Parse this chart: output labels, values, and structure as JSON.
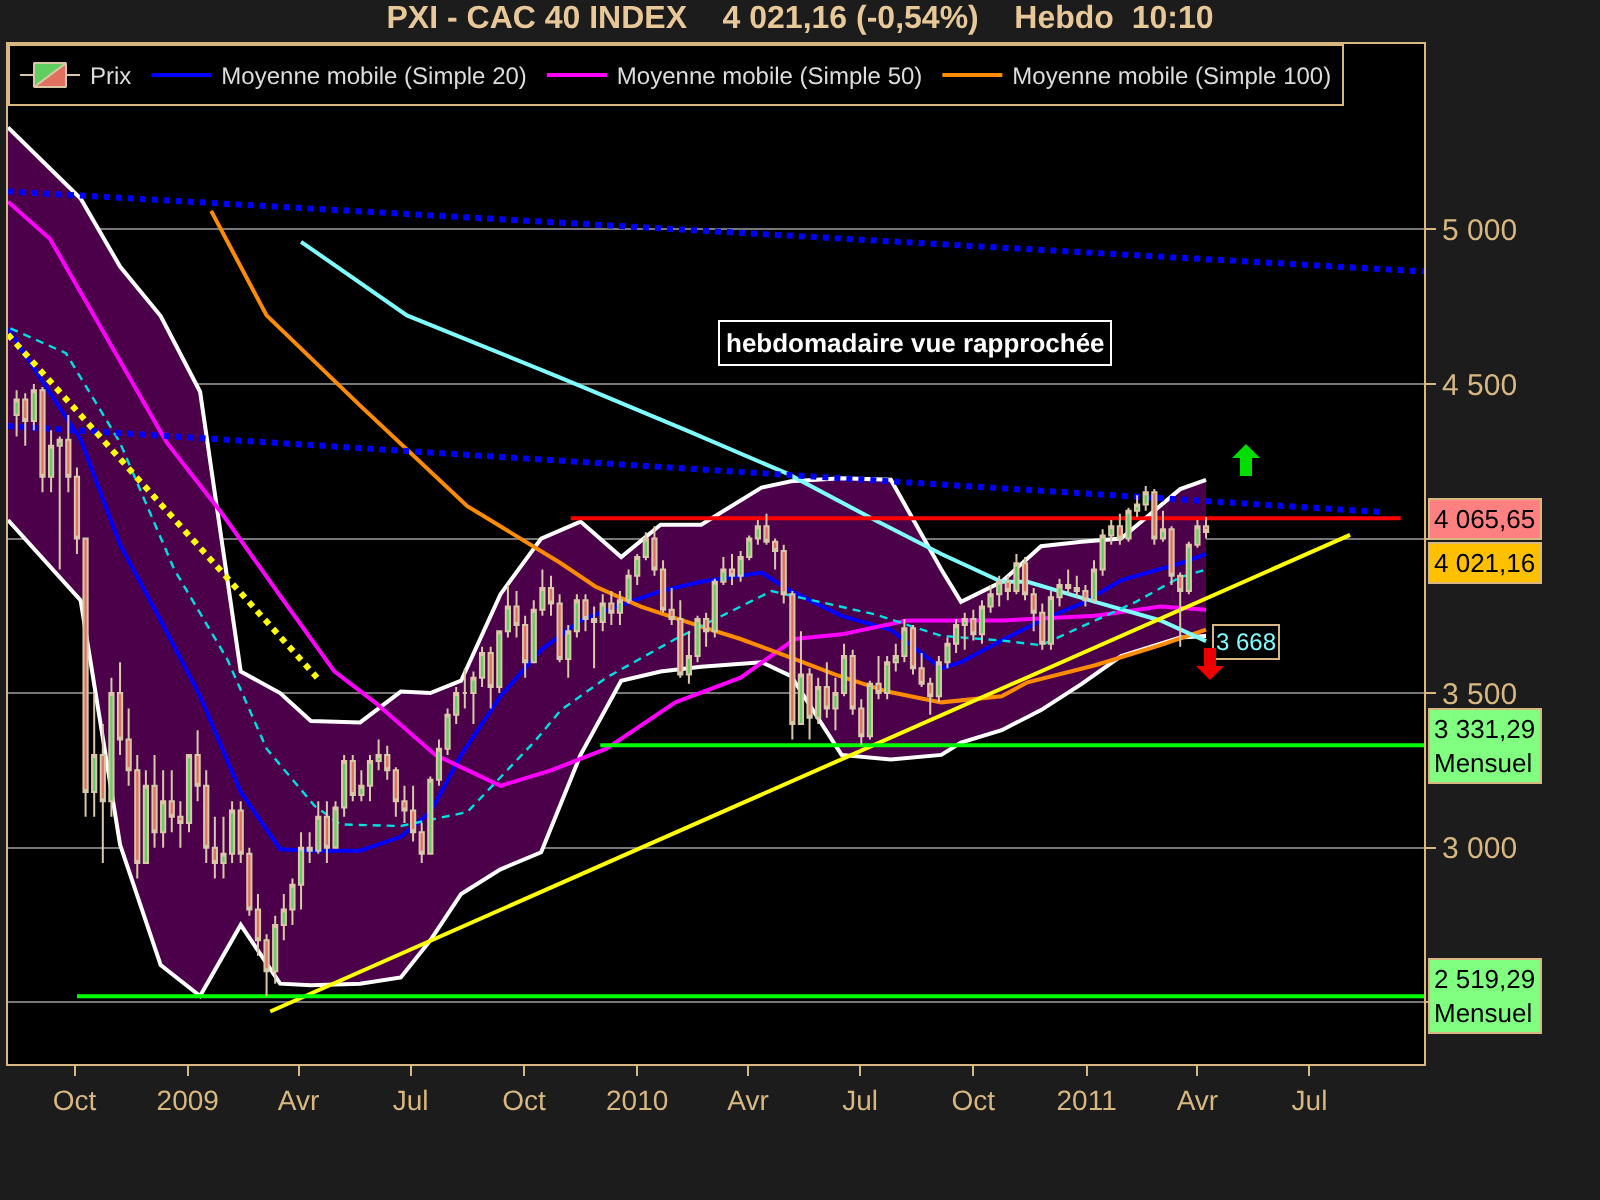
{
  "chart_data": {
    "type": "line",
    "title": "PXI - CAC 40 INDEX    4 021,16 (-0,54%)    Hebdo  10:10",
    "xlim": [
      "2008-08-08",
      "2011-10-02"
    ],
    "xticks": [
      {
        "value": "2008-10-01",
        "label": "Oct"
      },
      {
        "value": "2009-01-01",
        "label": "2009"
      },
      {
        "value": "2009-04-01",
        "label": "Avr"
      },
      {
        "value": "2009-07-01",
        "label": "Jul"
      },
      {
        "value": "2009-10-01",
        "label": "Oct"
      },
      {
        "value": "2010-01-01",
        "label": "2010"
      },
      {
        "value": "2010-04-01",
        "label": "Avr"
      },
      {
        "value": "2010-07-01",
        "label": "Jul"
      },
      {
        "value": "2010-10-01",
        "label": "Oct"
      },
      {
        "value": "2011-01-01",
        "label": "2011"
      },
      {
        "value": "2011-04-01",
        "label": "Avr"
      },
      {
        "value": "2011-07-01",
        "label": "Jul"
      }
    ],
    "ylim": [
      2300,
      5600
    ],
    "yticks": [
      {
        "value": 2500,
        "label": null
      },
      {
        "value": 3000,
        "label": "3 000"
      },
      {
        "value": 3500,
        "label": "3 500"
      },
      {
        "value": 4000,
        "label": null
      },
      {
        "value": 4500,
        "label": "4 500"
      },
      {
        "value": 5000,
        "label": "5 000"
      }
    ],
    "grid": "y",
    "legend": "top left",
    "annotations": [
      "hebdomadaire vue rapprochée",
      "4 021,16"
    ],
    "series": [
      {
        "type": "candlestick",
        "name": "Prix",
        "x": [
          "2008-08-15",
          "2008-08-22",
          "2008-08-29",
          "2008-09-05",
          "2008-09-12",
          "2008-09-19",
          "2008-09-26",
          "2008-10-03",
          "2008-10-10",
          "2008-10-17",
          "2008-10-24",
          "2008-10-31",
          "2008-11-07",
          "2008-11-14",
          "2008-11-21",
          "2008-11-28",
          "2008-12-05",
          "2008-12-12",
          "2008-12-19",
          "2008-12-26",
          "2009-01-02",
          "2009-01-09",
          "2009-01-16",
          "2009-01-23",
          "2009-01-30",
          "2009-02-06",
          "2009-02-13",
          "2009-02-20",
          "2009-02-27",
          "2009-03-06",
          "2009-03-13",
          "2009-03-20",
          "2009-03-27",
          "2009-04-03",
          "2009-04-10",
          "2009-04-17",
          "2009-04-24",
          "2009-05-01",
          "2009-05-08",
          "2009-05-15",
          "2009-05-22",
          "2009-05-29",
          "2009-06-05",
          "2009-06-12",
          "2009-06-19",
          "2009-06-26",
          "2009-07-03",
          "2009-07-10",
          "2009-07-17",
          "2009-07-24",
          "2009-07-31",
          "2009-08-07",
          "2009-08-14",
          "2009-08-21",
          "2009-08-28",
          "2009-09-04",
          "2009-09-11",
          "2009-09-18",
          "2009-09-25",
          "2009-10-02",
          "2009-10-09",
          "2009-10-16",
          "2009-10-23",
          "2009-10-30",
          "2009-11-06",
          "2009-11-13",
          "2009-11-20",
          "2009-11-27",
          "2009-12-04",
          "2009-12-11",
          "2009-12-18",
          "2009-12-25",
          "2010-01-01",
          "2010-01-08",
          "2010-01-15",
          "2010-01-22",
          "2010-01-29",
          "2010-02-05",
          "2010-02-12",
          "2010-02-19",
          "2010-02-26",
          "2010-03-05",
          "2010-03-12",
          "2010-03-19",
          "2010-03-26",
          "2010-04-02",
          "2010-04-09",
          "2010-04-16",
          "2010-04-23",
          "2010-04-30",
          "2010-05-07",
          "2010-05-14",
          "2010-05-21",
          "2010-05-28",
          "2010-06-04",
          "2010-06-11",
          "2010-06-18",
          "2010-06-25",
          "2010-07-02",
          "2010-07-09",
          "2010-07-16",
          "2010-07-23",
          "2010-07-30",
          "2010-08-06",
          "2010-08-13",
          "2010-08-20",
          "2010-08-27",
          "2010-09-03",
          "2010-09-10",
          "2010-09-17",
          "2010-09-24",
          "2010-10-01",
          "2010-10-08",
          "2010-10-15",
          "2010-10-22",
          "2010-10-29",
          "2010-11-05",
          "2010-11-12",
          "2010-11-19",
          "2010-11-26",
          "2010-12-03",
          "2010-12-10",
          "2010-12-17",
          "2010-12-24",
          "2010-12-31",
          "2011-01-07",
          "2011-01-14",
          "2011-01-21",
          "2011-01-28",
          "2011-02-04",
          "2011-02-11",
          "2011-02-18",
          "2011-02-25",
          "2011-03-04",
          "2011-03-11",
          "2011-03-18",
          "2011-03-25",
          "2011-04-01",
          "2011-04-08"
        ],
        "ohlc": [
          [
            4400,
            4480,
            4330,
            4450
          ],
          [
            4450,
            4470,
            4300,
            4380
          ],
          [
            4380,
            4500,
            4350,
            4480
          ],
          [
            4480,
            4490,
            4150,
            4200
          ],
          [
            4200,
            4350,
            4150,
            4300
          ],
          [
            4300,
            4330,
            3900,
            4320
          ],
          [
            4320,
            4400,
            4150,
            4200
          ],
          [
            4200,
            4230,
            3950,
            4000
          ],
          [
            4000,
            4000,
            3100,
            3180
          ],
          [
            3180,
            3500,
            3100,
            3300
          ],
          [
            3300,
            3400,
            2950,
            3150
          ],
          [
            3150,
            3550,
            3100,
            3500
          ],
          [
            3500,
            3600,
            3300,
            3350
          ],
          [
            3350,
            3450,
            3200,
            3250
          ],
          [
            3250,
            3300,
            2900,
            2950
          ],
          [
            2950,
            3250,
            2950,
            3200
          ],
          [
            3200,
            3300,
            3000,
            3050
          ],
          [
            3050,
            3250,
            3000,
            3150
          ],
          [
            3150,
            3250,
            3050,
            3100
          ],
          [
            3100,
            3150,
            3000,
            3080
          ],
          [
            3080,
            3300,
            3050,
            3300
          ],
          [
            3300,
            3380,
            3150,
            3200
          ],
          [
            3200,
            3250,
            2950,
            3000
          ],
          [
            3000,
            3100,
            2900,
            2950
          ],
          [
            2950,
            3100,
            2900,
            2980
          ],
          [
            2980,
            3150,
            2950,
            3120
          ],
          [
            3120,
            3150,
            2950,
            2980
          ],
          [
            2980,
            3000,
            2780,
            2800
          ],
          [
            2800,
            2850,
            2650,
            2700
          ],
          [
            2700,
            2720,
            2519.29,
            2600
          ],
          [
            2600,
            2780,
            2560,
            2750
          ],
          [
            2750,
            2850,
            2700,
            2800
          ],
          [
            2800,
            2900,
            2750,
            2880
          ],
          [
            2880,
            3050,
            2800,
            3000
          ],
          [
            3000,
            3050,
            2950,
            2990
          ],
          [
            2990,
            3150,
            2980,
            3100
          ],
          [
            3100,
            3150,
            2950,
            3000
          ],
          [
            3000,
            3150,
            3000,
            3130
          ],
          [
            3130,
            3300,
            3100,
            3280
          ],
          [
            3280,
            3300,
            3150,
            3170
          ],
          [
            3170,
            3250,
            3150,
            3200
          ],
          [
            3200,
            3300,
            3150,
            3280
          ],
          [
            3280,
            3350,
            3250,
            3300
          ],
          [
            3300,
            3330,
            3220,
            3250
          ],
          [
            3250,
            3260,
            3100,
            3150
          ],
          [
            3150,
            3200,
            3080,
            3120
          ],
          [
            3120,
            3200,
            3020,
            3050
          ],
          [
            3050,
            3080,
            2950,
            2980
          ],
          [
            2980,
            3230,
            2980,
            3220
          ],
          [
            3220,
            3350,
            3200,
            3320
          ],
          [
            3320,
            3450,
            3300,
            3430
          ],
          [
            3430,
            3520,
            3400,
            3500
          ],
          [
            3500,
            3580,
            3450,
            3500
          ],
          [
            3500,
            3570,
            3400,
            3550
          ],
          [
            3550,
            3650,
            3520,
            3630
          ],
          [
            3630,
            3650,
            3450,
            3520
          ],
          [
            3520,
            3700,
            3500,
            3700
          ],
          [
            3700,
            3850,
            3680,
            3780
          ],
          [
            3780,
            3830,
            3680,
            3720
          ],
          [
            3720,
            3750,
            3550,
            3600
          ],
          [
            3600,
            3800,
            3600,
            3770
          ],
          [
            3770,
            3900,
            3750,
            3840
          ],
          [
            3840,
            3880,
            3750,
            3790
          ],
          [
            3790,
            3820,
            3600,
            3610
          ],
          [
            3610,
            3720,
            3550,
            3700
          ],
          [
            3700,
            3820,
            3680,
            3800
          ],
          [
            3800,
            3820,
            3700,
            3740
          ],
          [
            3740,
            3780,
            3580,
            3730
          ],
          [
            3730,
            3820,
            3700,
            3790
          ],
          [
            3790,
            3830,
            3720,
            3760
          ],
          [
            3760,
            3830,
            3720,
            3800
          ],
          [
            3800,
            3900,
            3790,
            3880
          ],
          [
            3880,
            3950,
            3850,
            3940
          ],
          [
            3940,
            4020,
            3930,
            4000
          ],
          [
            4000,
            4040,
            3880,
            3900
          ],
          [
            3900,
            3930,
            3760,
            3770
          ],
          [
            3770,
            3840,
            3720,
            3740
          ],
          [
            3740,
            3800,
            3550,
            3560
          ],
          [
            3560,
            3700,
            3530,
            3620
          ],
          [
            3620,
            3750,
            3600,
            3740
          ],
          [
            3740,
            3760,
            3650,
            3700
          ],
          [
            3700,
            3870,
            3680,
            3860
          ],
          [
            3860,
            3940,
            3850,
            3900
          ],
          [
            3900,
            3950,
            3850,
            3880
          ],
          [
            3880,
            3960,
            3860,
            3940
          ],
          [
            3940,
            4010,
            3930,
            4000
          ],
          [
            4000,
            4060,
            3980,
            4040
          ],
          [
            4040,
            4080,
            3980,
            3990
          ],
          [
            3990,
            4000,
            3900,
            3960
          ],
          [
            3960,
            3980,
            3790,
            3820
          ],
          [
            3820,
            3830,
            3350,
            3400
          ],
          [
            3400,
            3700,
            3400,
            3560
          ],
          [
            3560,
            3580,
            3350,
            3420
          ],
          [
            3420,
            3550,
            3400,
            3520
          ],
          [
            3520,
            3600,
            3420,
            3450
          ],
          [
            3450,
            3550,
            3380,
            3500
          ],
          [
            3500,
            3660,
            3490,
            3620
          ],
          [
            3620,
            3640,
            3430,
            3450
          ],
          [
            3450,
            3480,
            3331.29,
            3360
          ],
          [
            3360,
            3540,
            3350,
            3530
          ],
          [
            3530,
            3620,
            3480,
            3500
          ],
          [
            3500,
            3620,
            3480,
            3600
          ],
          [
            3600,
            3660,
            3570,
            3620
          ],
          [
            3620,
            3740,
            3600,
            3710
          ],
          [
            3710,
            3720,
            3560,
            3580
          ],
          [
            3580,
            3630,
            3520,
            3530
          ],
          [
            3530,
            3550,
            3430,
            3490
          ],
          [
            3490,
            3620,
            3470,
            3600
          ],
          [
            3600,
            3680,
            3580,
            3660
          ],
          [
            3660,
            3740,
            3630,
            3720
          ],
          [
            3720,
            3760,
            3640,
            3740
          ],
          [
            3740,
            3770,
            3670,
            3690
          ],
          [
            3690,
            3800,
            3660,
            3780
          ],
          [
            3780,
            3850,
            3760,
            3820
          ],
          [
            3820,
            3880,
            3780,
            3860
          ],
          [
            3860,
            3880,
            3800,
            3830
          ],
          [
            3830,
            3950,
            3820,
            3920
          ],
          [
            3920,
            3940,
            3800,
            3820
          ],
          [
            3820,
            3840,
            3700,
            3760
          ],
          [
            3760,
            3790,
            3640,
            3660
          ],
          [
            3660,
            3830,
            3640,
            3810
          ],
          [
            3810,
            3870,
            3780,
            3850
          ],
          [
            3850,
            3900,
            3820,
            3840
          ],
          [
            3840,
            3880,
            3810,
            3830
          ],
          [
            3830,
            3850,
            3780,
            3800
          ],
          [
            3800,
            3930,
            3790,
            3900
          ],
          [
            3900,
            4030,
            3880,
            4010
          ],
          [
            4010,
            4060,
            3980,
            4040
          ],
          [
            4040,
            4080,
            3980,
            4000
          ],
          [
            4000,
            4100,
            3990,
            4090
          ],
          [
            4090,
            4140,
            4070,
            4110
          ],
          [
            4110,
            4170,
            4090,
            4150
          ],
          [
            4150,
            4160,
            3980,
            4000
          ],
          [
            4000,
            4090,
            3990,
            4030
          ],
          [
            4030,
            4040,
            3850,
            3880
          ],
          [
            3880,
            3890,
            3650,
            3830
          ],
          [
            3830,
            3990,
            3820,
            3980
          ],
          [
            3980,
            4060,
            3970,
            4040
          ],
          [
            4040,
            4070,
            4000,
            4021.16
          ]
        ]
      },
      {
        "name": "Moyenne mobile (Simple 20)",
        "color": "#0000ff",
        "x": [
          "2008-08-08",
          "2008-10-06",
          "2008-11-07",
          "2008-12-10",
          "2009-01-11",
          "2009-02-13",
          "2009-03-17",
          "2009-04-11",
          "2009-05-21",
          "2009-06-23",
          "2009-07-17",
          "2009-08-11",
          "2009-09-12",
          "2009-10-15",
          "2009-11-16",
          "2009-12-19",
          "2010-01-20",
          "2010-02-22",
          "2010-04-12",
          "2010-05-06",
          "2010-06-16",
          "2010-07-26",
          "2010-09-05",
          "2010-09-21",
          "2010-10-24",
          "2010-11-25",
          "2010-12-28",
          "2011-01-29",
          "2011-03-18",
          "2011-04-08"
        ],
        "values": [
          4680,
          4320,
          3980,
          3735,
          3490,
          3180,
          2995,
          2990,
          2990,
          3035,
          3115,
          3300,
          3490,
          3640,
          3735,
          3785,
          3830,
          3860,
          3890,
          3830,
          3750,
          3705,
          3580,
          3600,
          3670,
          3735,
          3790,
          3865,
          3920,
          3950
        ],
        "upper": [
          5330,
          5100,
          4880,
          4720,
          4475,
          3570,
          3500,
          3410,
          3405,
          3505,
          3500,
          3540,
          3820,
          4000,
          4055,
          3940,
          4045,
          4045,
          4165,
          4185,
          4195,
          4190,
          3900,
          3795,
          3860,
          3975,
          3990,
          4000,
          4160,
          4190
        ],
        "lower": [
          4060,
          3800,
          3010,
          2620,
          2520,
          2750,
          2560,
          2555,
          2560,
          2580,
          2700,
          2850,
          2930,
          2985,
          3300,
          3540,
          3570,
          3585,
          3600,
          3555,
          3300,
          3285,
          3300,
          3340,
          3380,
          3445,
          3530,
          3620,
          3680,
          3685
        ]
      },
      {
        "color": "#ffffff",
        "x": [
          "2008-08-08",
          "2008-10-06",
          "2008-11-07",
          "2008-12-10",
          "2009-01-11",
          "2009-02-13",
          "2009-03-17",
          "2009-04-11",
          "2009-05-21",
          "2009-06-23",
          "2009-07-17",
          "2009-08-11",
          "2009-09-12",
          "2009-10-15",
          "2009-11-16",
          "2009-12-19",
          "2010-01-20",
          "2010-02-22",
          "2010-04-12",
          "2010-05-06",
          "2010-06-16",
          "2010-07-26",
          "2010-09-05",
          "2010-09-21",
          "2010-10-24",
          "2010-11-25",
          "2010-12-28",
          "2011-01-29",
          "2011-03-18",
          "2011-04-08"
        ],
        "values": [
          5330,
          5100,
          4880,
          4720,
          4475,
          3570,
          3500,
          3410,
          3405,
          3505,
          3500,
          3540,
          3820,
          4000,
          4055,
          3940,
          4045,
          4045,
          4165,
          4185,
          4195,
          4190,
          3900,
          3795,
          3860,
          3975,
          3990,
          4000,
          4160,
          4190
        ]
      },
      {
        "color": "#ffffff",
        "x": [
          "2008-08-08",
          "2008-10-06",
          "2008-11-07",
          "2008-12-10",
          "2009-01-11",
          "2009-02-13",
          "2009-03-17",
          "2009-04-11",
          "2009-05-21",
          "2009-06-23",
          "2009-07-17",
          "2009-08-11",
          "2009-09-12",
          "2009-10-15",
          "2009-11-16",
          "2009-12-19",
          "2010-01-20",
          "2010-02-22",
          "2010-04-12",
          "2010-05-06",
          "2010-06-16",
          "2010-07-26",
          "2010-09-05",
          "2010-09-21",
          "2010-10-24",
          "2010-11-25",
          "2010-12-28",
          "2011-01-29",
          "2011-03-18",
          "2011-04-08"
        ],
        "values": [
          4060,
          3800,
          3010,
          2620,
          2520,
          2750,
          2560,
          2555,
          2560,
          2580,
          2700,
          2850,
          2930,
          2985,
          3300,
          3540,
          3570,
          3585,
          3600,
          3555,
          3300,
          3285,
          3300,
          3340,
          3380,
          3445,
          3530,
          3620,
          3680,
          3685
        ]
      },
      {
        "name": "Moyenne mobile (Simple 50)",
        "color": "#ff00ff",
        "x": [
          "2008-08-08",
          "2008-09-11",
          "2008-10-17",
          "2008-12-15",
          "2009-01-28",
          "2009-03-17",
          "2009-04-30",
          "2009-06-02",
          "2009-07-21",
          "2009-09-12",
          "2009-10-23",
          "2009-12-07",
          "2010-02-01",
          "2010-03-26",
          "2010-05-09",
          "2010-06-16",
          "2010-08-08",
          "2010-10-24",
          "2011-01-08",
          "2011-03-02",
          "2011-04-08"
        ],
        "values": [
          5090,
          4970,
          4720,
          4310,
          4085,
          3815,
          3570,
          3470,
          3300,
          3200,
          3250,
          3320,
          3470,
          3550,
          3675,
          3690,
          3735,
          3735,
          3750,
          3780,
          3770
        ]
      },
      {
        "name": "Moyenne mobile (Simple 100)",
        "color": "#ff8c00",
        "x": [
          "2009-01-20",
          "2009-03-06",
          "2009-05-21",
          "2009-08-16",
          "2009-10-31",
          "2009-11-28",
          "2010-01-04",
          "2010-02-22",
          "2010-03-26",
          "2010-05-09",
          "2010-06-11",
          "2010-07-23",
          "2010-09-05",
          "2010-10-24",
          "2010-11-14",
          "2011-01-08",
          "2011-03-02",
          "2011-04-08"
        ],
        "values": [
          5060,
          4722,
          4430,
          4105,
          3920,
          3845,
          3780,
          3715,
          3675,
          3610,
          3560,
          3505,
          3470,
          3490,
          3535,
          3590,
          3655,
          3705
        ]
      },
      {
        "color": "#80ffff",
        "x": [
          "2009-04-03",
          "2009-06-28",
          "2009-10-31",
          "2010-02-10",
          "2010-05-03",
          "2010-07-13",
          "2010-09-05",
          "2010-10-24",
          "2010-11-14",
          "2011-01-08",
          "2011-03-02",
          "2011-04-08"
        ],
        "values": [
          4960,
          4722,
          4520,
          4350,
          4210,
          4060,
          3950,
          3860,
          3860,
          3795,
          3735,
          3668
        ],
        "value_labels": [
          null,
          null,
          null,
          null,
          null,
          null,
          null,
          null,
          null,
          null,
          null,
          "3 668"
        ]
      },
      {
        "color": "#00e0e0",
        "line_style": "dashed",
        "x": [
          "2008-08-10",
          "2008-09-24",
          "2008-11-07",
          "2008-12-21",
          "2009-02-02",
          "2009-03-06",
          "2009-04-14",
          "2009-05-05",
          "2009-06-23",
          "2009-08-16",
          "2009-10-10",
          "2009-10-31",
          "2009-12-07",
          "2010-02-01",
          "2010-03-26",
          "2010-04-20",
          "2010-05-29",
          "2010-07-13",
          "2010-09-05",
          "2010-10-24",
          "2010-11-25",
          "2011-01-08",
          "2011-02-10",
          "2011-03-18",
          "2011-04-08"
        ],
        "values": [
          4680,
          4600,
          4310,
          3900,
          3610,
          3320,
          3135,
          3075,
          3070,
          3115,
          3345,
          3445,
          3550,
          3675,
          3780,
          3830,
          3795,
          3755,
          3685,
          3670,
          3655,
          3735,
          3795,
          3875,
          3900
        ]
      },
      {
        "color": "#0000ff",
        "line_style": "dotted",
        "x": [
          "2008-08-08",
          "2011-10-02"
        ],
        "values": [
          5123,
          4864
        ]
      },
      {
        "color": "#0000ff",
        "line_style": "dotted",
        "x": [
          "2008-08-08",
          "2011-08-27"
        ],
        "values": [
          4364,
          4086
        ]
      },
      {
        "color": "#ffff00",
        "line_style": "dotted",
        "x": [
          "2008-08-08",
          "2009-04-16"
        ],
        "values": [
          4660,
          3550
        ]
      },
      {
        "color": "#ffff00",
        "x": [
          "2009-03-09",
          "2011-08-03"
        ],
        "values": [
          2470,
          4012
        ]
      },
      {
        "color": "#ff0000",
        "x": [
          "2009-11-08",
          "2011-09-13"
        ],
        "values": [
          4065.65,
          4065.65
        ],
        "value_labels": [
          null,
          "4 065,65"
        ]
      },
      {
        "color": "#00ff00",
        "x": [
          "2009-12-02",
          "2011-10-02"
        ],
        "values": [
          3331.29,
          3331.29
        ],
        "value_labels": [
          null,
          "3 331,29\nMensuel"
        ]
      },
      {
        "color": "#00ff00",
        "x": [
          "2008-10-03",
          "2011-10-02"
        ],
        "values": [
          2519.29,
          2519.29
        ],
        "value_labels": [
          null,
          "2 519,29\nMensuel"
        ]
      }
    ]
  }
}
